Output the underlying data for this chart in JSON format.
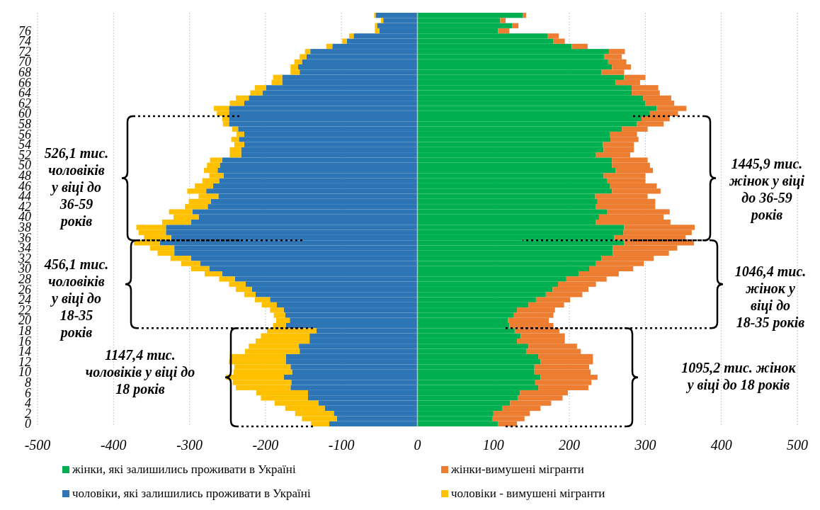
{
  "chart_data": {
    "type": "bar",
    "orientation": "horizontal",
    "stacked": true,
    "categories": [
      null,
      null,
      null,
      "76",
      null,
      "74",
      null,
      "72",
      null,
      "70",
      null,
      "68",
      null,
      "66",
      null,
      "64",
      null,
      "62",
      null,
      "60",
      null,
      "58",
      null,
      "56",
      null,
      "54",
      null,
      "52",
      null,
      "50",
      null,
      "48",
      null,
      "46",
      null,
      "44",
      null,
      "42",
      null,
      "40",
      null,
      "38",
      null,
      "36",
      null,
      "34",
      null,
      "32",
      null,
      "30",
      null,
      "28",
      null,
      "26",
      null,
      "24",
      null,
      "22",
      null,
      "20",
      null,
      "18",
      null,
      "16",
      null,
      "14",
      null,
      "12",
      null,
      "10",
      null,
      "8",
      null,
      "6",
      null,
      "4",
      null,
      "2",
      null,
      "0"
    ],
    "series": [
      {
        "name": "жінки, які залишились проживати в Україні",
        "color": "#00b050",
        "values": [
          139,
          109,
          125,
          106,
          171,
          179,
          203,
          252,
          246,
          251,
          256,
          242,
          272,
          261,
          282,
          282,
          297,
          300,
          315,
          306,
          295,
          289,
          269,
          253,
          254,
          244,
          245,
          235,
          256,
          256,
          261,
          245,
          250,
          253,
          256,
          234,
          237,
          235,
          250,
          239,
          235,
          272,
          271,
          259,
          272,
          257,
          257,
          242,
          235,
          226,
          212,
          196,
          185,
          178,
          169,
          156,
          146,
          131,
          127,
          119,
          121,
          128,
          136,
          131,
          146,
          143,
          159,
          162,
          154,
          154,
          162,
          155,
          159,
          135,
          132,
          122,
          112,
          100,
          99,
          106
        ]
      },
      {
        "name": "жінки-вимушені мігранти",
        "color": "#ed7d31",
        "values": [
          4,
          7,
          8,
          15,
          15,
          15,
          21,
          21,
          23,
          24,
          25,
          30,
          28,
          32,
          35,
          37,
          37,
          38,
          39,
          37,
          37,
          35,
          34,
          36,
          37,
          41,
          40,
          45,
          47,
          50,
          49,
          55,
          50,
          62,
          64,
          69,
          76,
          78,
          82,
          85,
          98,
          93,
          90,
          94,
          92,
          85,
          74,
          69,
          63,
          58,
          53,
          53,
          50,
          47,
          48,
          45,
          47,
          50,
          52,
          54,
          58,
          59,
          58,
          63,
          64,
          72,
          72,
          69,
          72,
          74,
          75,
          74,
          66,
          63,
          59,
          54,
          50,
          48,
          42,
          25
        ]
      },
      {
        "name": "чоловіки, які залишились проживати в Україні",
        "color": "#2e75b6",
        "values": [
          -55,
          -45,
          -53,
          -50,
          -84,
          -93,
          -112,
          -141,
          -146,
          -152,
          -157,
          -155,
          -178,
          -178,
          -199,
          -204,
          -222,
          -228,
          -248,
          -248,
          -248,
          -248,
          -236,
          -228,
          -235,
          -228,
          -232,
          -232,
          -257,
          -260,
          -263,
          -255,
          -261,
          -269,
          -278,
          -262,
          -272,
          -276,
          -296,
          -288,
          -298,
          -331,
          -331,
          -324,
          -339,
          -320,
          -320,
          -298,
          -286,
          -274,
          -257,
          -240,
          -226,
          -218,
          -213,
          -194,
          -185,
          -176,
          -174,
          -168,
          -173,
          -133,
          -142,
          -142,
          -156,
          -155,
          -173,
          -173,
          -167,
          -165,
          -176,
          -166,
          -167,
          -144,
          -144,
          -130,
          -122,
          -110,
          -106,
          -116
        ]
      },
      {
        "name": "чоловіки - вимушені мігранти",
        "color": "#ffc000",
        "values": [
          -2,
          -3,
          -3,
          -6,
          -6,
          -6,
          -8,
          -7,
          -9,
          -10,
          -10,
          -12,
          -12,
          -14,
          -15,
          -16,
          -17,
          -19,
          -20,
          -16,
          -9,
          -8,
          -8,
          -10,
          -10,
          -13,
          -15,
          -15,
          -16,
          -17,
          -18,
          -19,
          -22,
          -24,
          -25,
          -26,
          -29,
          -30,
          -31,
          -33,
          -38,
          -39,
          -36,
          -36,
          -34,
          -32,
          -22,
          -27,
          -25,
          -24,
          -23,
          -21,
          -22,
          -21,
          -15,
          -20,
          -20,
          -18,
          -15,
          -18,
          -17,
          -65,
          -64,
          -71,
          -66,
          -72,
          -74,
          -75,
          -74,
          -77,
          -76,
          -77,
          -72,
          -68,
          -62,
          -58,
          -52,
          -51,
          -46,
          -24
        ]
      }
    ],
    "xlim": [
      -500,
      500
    ],
    "xticks": [
      -500,
      -400,
      -300,
      -200,
      -100,
      0,
      100,
      200,
      300,
      400,
      500
    ],
    "grid": "x",
    "legend": "bottom",
    "annotations": [
      "526,1 тис. чоловіків у віці до 36-59 років",
      "456,1 тис. чоловіків у віці до 18-35 років",
      "1147,4 тис. чоловіків у віці до 18 років",
      "1445,9 тис. жінок у віці до 36-59 років",
      "1046,4 тис. жінок у віці до 18-35 років",
      "1095,2 тис. жінок у віці до 18 років"
    ]
  }
}
